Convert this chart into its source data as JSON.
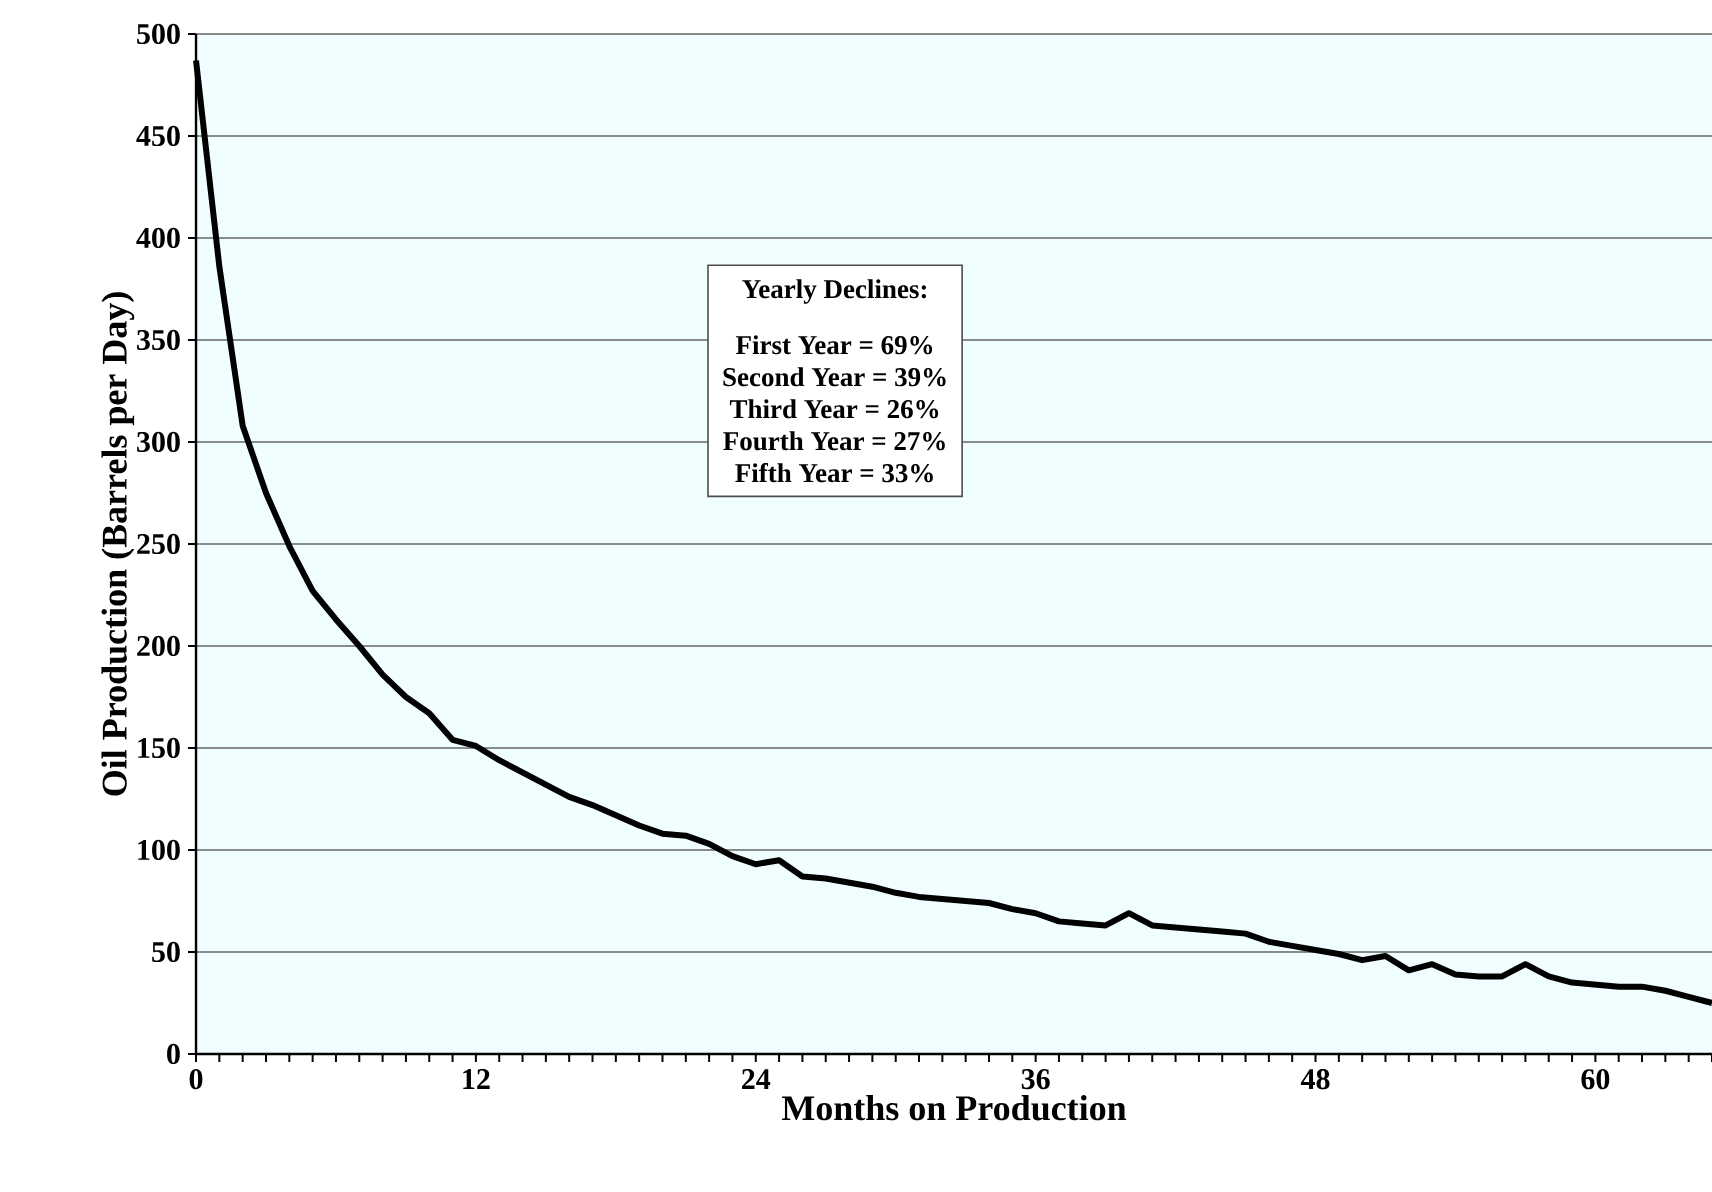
{
  "chart_data": {
    "type": "line",
    "xlabel": "Months on Production",
    "ylabel": "Oil Production (Barrels per Day)",
    "annotations": [
      "Yearly Declines:",
      "First Year = 69%",
      "Second Year =  39%",
      "Third Year = 26%",
      "Fourth Year = 27%",
      "Fifth Year = 33%"
    ],
    "x": [
      0,
      1,
      2,
      3,
      4,
      5,
      6,
      7,
      8,
      9,
      10,
      11,
      12,
      13,
      14,
      15,
      16,
      17,
      18,
      19,
      20,
      21,
      22,
      23,
      24,
      25,
      26,
      27,
      28,
      29,
      30,
      31,
      32,
      33,
      34,
      35,
      36,
      37,
      38,
      39,
      40,
      41,
      42,
      43,
      44,
      45,
      46,
      47,
      48,
      49,
      50,
      51,
      52,
      53,
      54,
      55,
      56,
      57,
      58,
      59,
      60,
      61,
      62,
      63,
      64,
      65
    ],
    "series": [
      {
        "color": "#000000",
        "values": [
          487,
          386,
          308,
          275,
          249,
          227,
          213,
          200,
          186,
          175,
          167,
          154,
          151,
          144,
          138,
          132,
          126,
          122,
          117,
          112,
          108,
          107,
          103,
          97,
          93,
          95,
          87,
          86,
          84,
          82,
          79,
          77,
          76,
          75,
          74,
          71,
          69,
          65,
          64,
          63,
          69,
          63,
          62,
          61,
          60,
          59,
          55,
          53,
          51,
          49,
          46,
          48,
          41,
          44,
          39,
          38,
          38,
          44,
          38,
          35,
          34,
          33,
          33,
          31,
          28,
          25
        ]
      }
    ],
    "xlim": [
      0,
      65
    ],
    "ylim": [
      0,
      500
    ],
    "xticks": [
      0,
      {
        "value": 1,
        "label": null
      },
      {
        "value": 2,
        "label": null
      },
      {
        "value": 3,
        "label": null
      },
      {
        "value": 4,
        "label": null
      },
      {
        "value": 5,
        "label": null
      },
      {
        "value": 6,
        "label": null
      },
      {
        "value": 7,
        "label": null
      },
      {
        "value": 8,
        "label": null
      },
      {
        "value": 9,
        "label": null
      },
      {
        "value": 10,
        "label": null
      },
      {
        "value": 11,
        "label": null
      },
      12,
      {
        "value": 13,
        "label": null
      },
      {
        "value": 14,
        "label": null
      },
      {
        "value": 15,
        "label": null
      },
      {
        "value": 16,
        "label": null
      },
      {
        "value": 17,
        "label": null
      },
      {
        "value": 18,
        "label": null
      },
      {
        "value": 19,
        "label": null
      },
      {
        "value": 20,
        "label": null
      },
      {
        "value": 21,
        "label": null
      },
      {
        "value": 22,
        "label": null
      },
      {
        "value": 23,
        "label": null
      },
      24,
      {
        "value": 25,
        "label": null
      },
      {
        "value": 26,
        "label": null
      },
      {
        "value": 27,
        "label": null
      },
      {
        "value": 28,
        "label": null
      },
      {
        "value": 29,
        "label": null
      },
      {
        "value": 30,
        "label": null
      },
      {
        "value": 31,
        "label": null
      },
      {
        "value": 32,
        "label": null
      },
      {
        "value": 33,
        "label": null
      },
      {
        "value": 34,
        "label": null
      },
      {
        "value": 35,
        "label": null
      },
      36,
      {
        "value": 37,
        "label": null
      },
      {
        "value": 38,
        "label": null
      },
      {
        "value": 39,
        "label": null
      },
      {
        "value": 40,
        "label": null
      },
      {
        "value": 41,
        "label": null
      },
      {
        "value": 42,
        "label": null
      },
      {
        "value": 43,
        "label": null
      },
      {
        "value": 44,
        "label": null
      },
      {
        "value": 45,
        "label": null
      },
      {
        "value": 46,
        "label": null
      },
      {
        "value": 47,
        "label": null
      },
      48,
      {
        "value": 49,
        "label": null
      },
      {
        "value": 50,
        "label": null
      },
      {
        "value": 51,
        "label": null
      },
      {
        "value": 52,
        "label": null
      },
      {
        "value": 53,
        "label": null
      },
      {
        "value": 54,
        "label": null
      },
      {
        "value": 55,
        "label": null
      },
      {
        "value": 56,
        "label": null
      },
      {
        "value": 57,
        "label": null
      },
      {
        "value": 58,
        "label": null
      },
      {
        "value": 59,
        "label": null
      },
      60,
      {
        "value": 61,
        "label": null
      },
      {
        "value": 62,
        "label": null
      },
      {
        "value": 63,
        "label": null
      },
      {
        "value": 64,
        "label": null
      },
      {
        "value": 65,
        "label": null
      }
    ],
    "yticks": [
      0,
      50,
      100,
      150,
      200,
      250,
      300,
      350,
      400,
      450,
      500
    ],
    "grid": "y"
  }
}
